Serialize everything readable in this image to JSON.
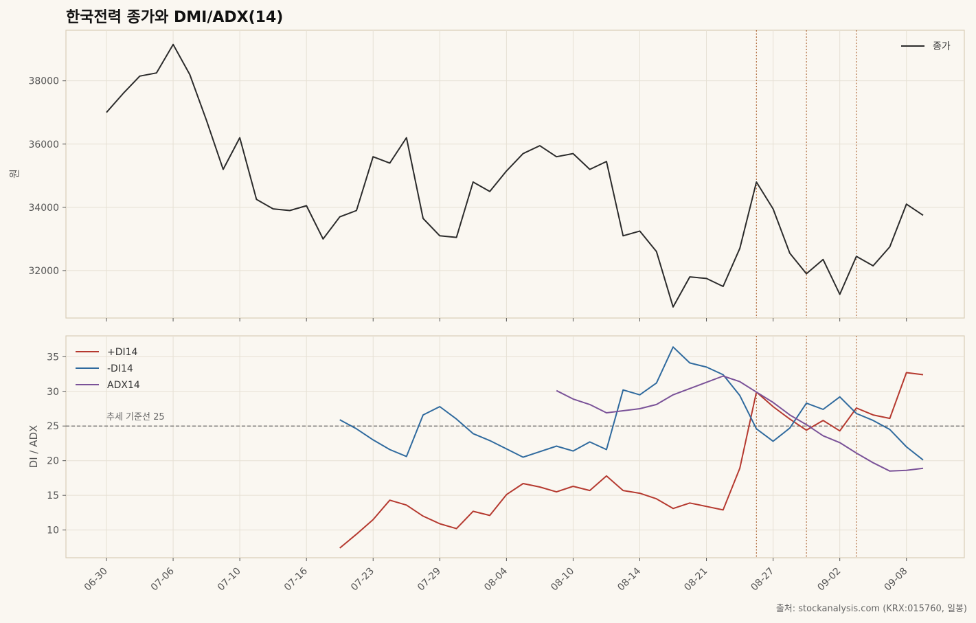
{
  "chart_data": [
    {
      "type": "line",
      "title": "한국전력 종가와 DMI/ADX(14)",
      "ylabel": "원",
      "ylim": [
        30500,
        39600
      ],
      "yticks": [
        32000,
        34000,
        36000,
        38000
      ],
      "grid": true,
      "legend_position": "top-right",
      "x_ticks": [
        "06-30",
        "07-06",
        "07-10",
        "07-16",
        "07-23",
        "07-29",
        "08-04",
        "08-10",
        "08-14",
        "08-21",
        "08-27",
        "09-02",
        "09-08"
      ],
      "series": [
        {
          "name": "종가",
          "color": "#2b2b2b",
          "values": [
            37000,
            37600,
            38150,
            38250,
            39150,
            38200,
            36750,
            35200,
            36200,
            34250,
            33950,
            33900,
            34050,
            33000,
            33700,
            33900,
            35600,
            35400,
            36200,
            33650,
            33100,
            33050,
            34800,
            34500,
            35150,
            35700,
            35950,
            35600,
            35700,
            35200,
            35450,
            33100,
            33250,
            32600,
            30850,
            31800,
            31750,
            31500,
            32700,
            34800,
            33950,
            32550,
            31900,
            32350,
            31250,
            32450,
            32150,
            32750,
            34100,
            33750
          ]
        }
      ],
      "vertical_markers_index": [
        39,
        42,
        45
      ]
    },
    {
      "type": "line",
      "ylabel": "DI / ADX",
      "ylim": [
        6,
        38
      ],
      "yticks": [
        10,
        15,
        20,
        25,
        30,
        35
      ],
      "grid": true,
      "legend_position": "top-left",
      "x_ticks": [
        "06-30",
        "07-06",
        "07-10",
        "07-16",
        "07-23",
        "07-29",
        "08-04",
        "08-10",
        "08-14",
        "08-21",
        "08-27",
        "09-02",
        "09-08"
      ],
      "reference_line": {
        "value": 25,
        "label": "추세 기준선 25"
      },
      "series": [
        {
          "name": "+DI14",
          "color": "#b5392f",
          "start_index": 14,
          "values": [
            7.4,
            9.4,
            11.5,
            14.3,
            13.6,
            12.0,
            10.9,
            10.2,
            12.7,
            12.1,
            15.1,
            16.7,
            16.2,
            15.5,
            16.3,
            15.7,
            17.8,
            15.7,
            15.3,
            14.5,
            13.1,
            13.9,
            13.4,
            12.9,
            18.9,
            29.9,
            27.8,
            26.0,
            24.4,
            25.8,
            24.3,
            27.6,
            26.6,
            26.1,
            32.7,
            32.4
          ]
        },
        {
          "name": "-DI14",
          "color": "#2f6a9e",
          "start_index": 14,
          "values": [
            25.9,
            24.6,
            23.0,
            21.6,
            20.6,
            26.6,
            27.8,
            26.0,
            23.9,
            22.9,
            21.7,
            20.5,
            21.3,
            22.1,
            21.4,
            22.7,
            21.6,
            30.2,
            29.5,
            31.2,
            36.4,
            34.1,
            33.5,
            32.4,
            29.4,
            24.6,
            22.8,
            24.7,
            28.3,
            27.4,
            29.2,
            26.8,
            25.8,
            24.5,
            22.0,
            20.1
          ]
        },
        {
          "name": "ADX14",
          "color": "#7a5298",
          "start_index": 27,
          "values": [
            30.1,
            28.9,
            28.1,
            26.9,
            27.2,
            27.5,
            28.1,
            29.5,
            30.4,
            31.3,
            32.2,
            31.4,
            29.9,
            28.4,
            26.6,
            25.2,
            23.6,
            22.6,
            21.1,
            19.7,
            18.5,
            18.6,
            18.9
          ]
        }
      ],
      "vertical_markers_index": [
        39,
        42,
        45
      ]
    }
  ],
  "source": "출처: stockanalysis.com (KRX:015760, 일봉)"
}
